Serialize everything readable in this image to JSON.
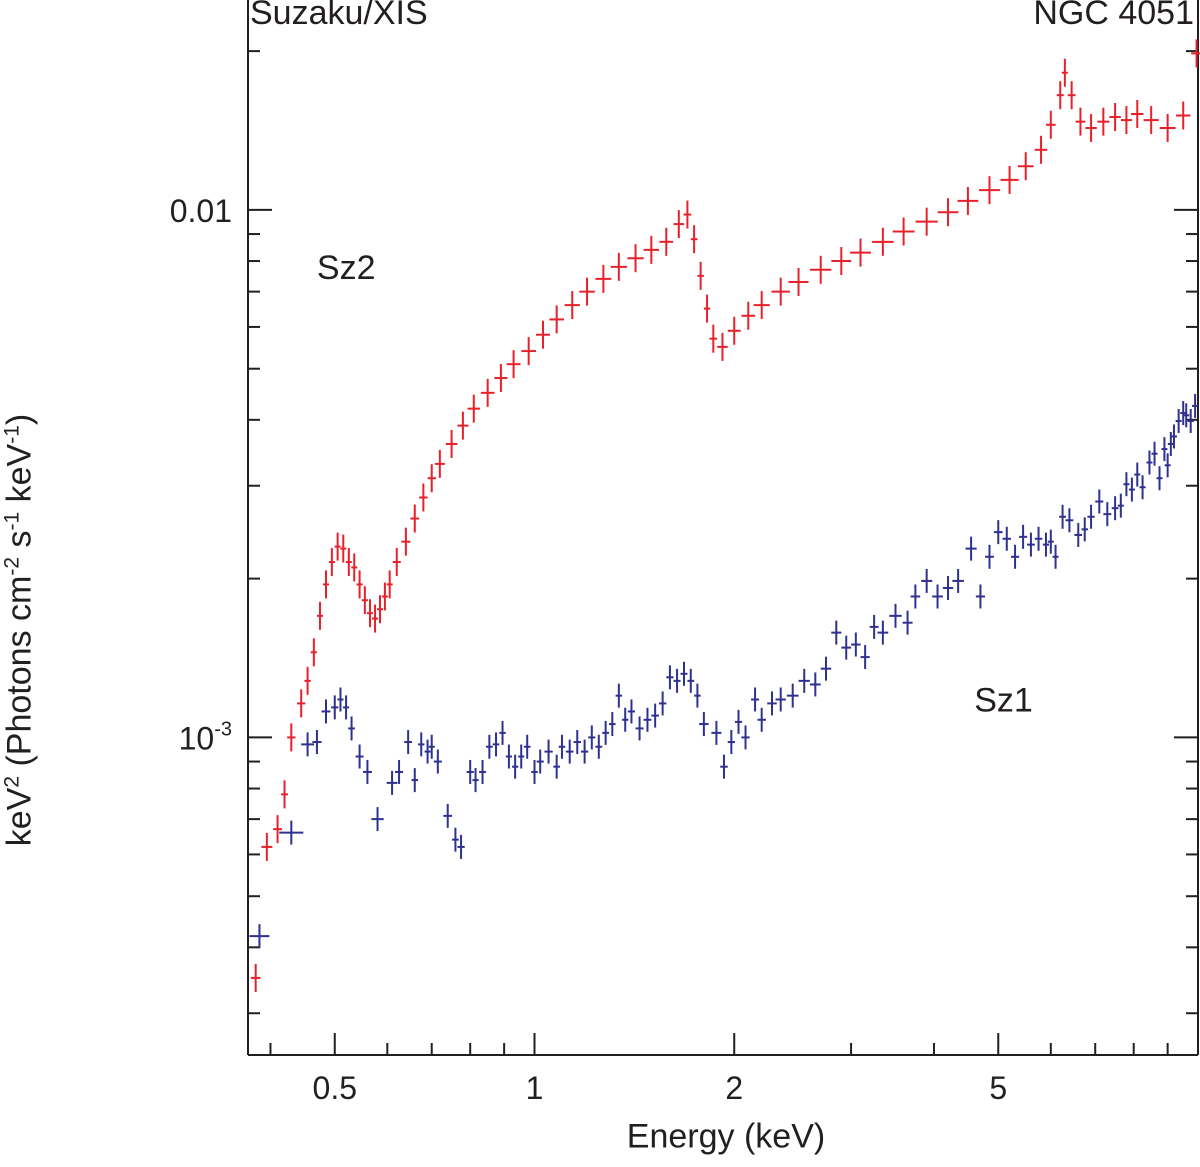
{
  "chart_data": {
    "type": "scatter",
    "title_left": "Suzaku/XIS",
    "title_right": "NGC 4051",
    "xlabel": "Energy (keV)",
    "ylabel": {
      "base": "keV",
      "sup1": "2",
      "mid1": " (Photons cm",
      "sup2": "-2",
      "mid2": " s",
      "sup3": "-1",
      "mid3": " keV",
      "sup4": "-1",
      "end": ")"
    },
    "xscale": "log",
    "yscale": "log",
    "xlim": [
      0.37,
      10.0
    ],
    "ylim": [
      0.00025,
      0.025
    ],
    "xticks": [
      {
        "value": 0.5,
        "label": "0.5"
      },
      {
        "value": 1,
        "label": "1"
      },
      {
        "value": 2,
        "label": "2"
      },
      {
        "value": 5,
        "label": "5"
      }
    ],
    "yticks": [
      {
        "value": 0.01,
        "label": "0.01"
      },
      {
        "value": 0.001,
        "label": "10",
        "sup": "-3"
      }
    ],
    "grid": false,
    "series": [
      {
        "name": "Sz2",
        "color": "#e8202a",
        "label_at": {
          "x": 0.47,
          "y": 0.0074
        },
        "points": [
          [
            0.38,
            0.00035
          ],
          [
            0.395,
            0.00062
          ],
          [
            0.41,
            0.00067
          ],
          [
            0.42,
            0.00078
          ],
          [
            0.43,
            0.001
          ],
          [
            0.445,
            0.00116
          ],
          [
            0.455,
            0.00128
          ],
          [
            0.465,
            0.00145
          ],
          [
            0.475,
            0.0017
          ],
          [
            0.485,
            0.00195
          ],
          [
            0.495,
            0.00215
          ],
          [
            0.505,
            0.0023
          ],
          [
            0.515,
            0.00228
          ],
          [
            0.525,
            0.00215
          ],
          [
            0.535,
            0.0021
          ],
          [
            0.545,
            0.00195
          ],
          [
            0.555,
            0.00182
          ],
          [
            0.565,
            0.00172
          ],
          [
            0.575,
            0.00168
          ],
          [
            0.585,
            0.00175
          ],
          [
            0.595,
            0.00185
          ],
          [
            0.605,
            0.00195
          ],
          [
            0.62,
            0.00215
          ],
          [
            0.64,
            0.00235
          ],
          [
            0.66,
            0.0026
          ],
          [
            0.68,
            0.00285
          ],
          [
            0.7,
            0.0031
          ],
          [
            0.72,
            0.0033
          ],
          [
            0.75,
            0.0036
          ],
          [
            0.78,
            0.0039
          ],
          [
            0.81,
            0.0042
          ],
          [
            0.85,
            0.0045
          ],
          [
            0.89,
            0.0048
          ],
          [
            0.93,
            0.0051
          ],
          [
            0.98,
            0.0054
          ],
          [
            1.03,
            0.0058
          ],
          [
            1.08,
            0.0062
          ],
          [
            1.14,
            0.0066
          ],
          [
            1.2,
            0.007
          ],
          [
            1.27,
            0.0074
          ],
          [
            1.34,
            0.0078
          ],
          [
            1.42,
            0.0081
          ],
          [
            1.5,
            0.0084
          ],
          [
            1.58,
            0.0087
          ],
          [
            1.65,
            0.0094
          ],
          [
            1.7,
            0.0098
          ],
          [
            1.74,
            0.0088
          ],
          [
            1.78,
            0.0075
          ],
          [
            1.82,
            0.0065
          ],
          [
            1.86,
            0.0057
          ],
          [
            1.92,
            0.0055
          ],
          [
            2.0,
            0.0059
          ],
          [
            2.1,
            0.0063
          ],
          [
            2.2,
            0.0066
          ],
          [
            2.35,
            0.007
          ],
          [
            2.5,
            0.0073
          ],
          [
            2.7,
            0.0077
          ],
          [
            2.9,
            0.008
          ],
          [
            3.1,
            0.0083
          ],
          [
            3.35,
            0.0087
          ],
          [
            3.6,
            0.0091
          ],
          [
            3.9,
            0.0095
          ],
          [
            4.2,
            0.0099
          ],
          [
            4.5,
            0.0104
          ],
          [
            4.85,
            0.0109
          ],
          [
            5.2,
            0.0114
          ],
          [
            5.5,
            0.0121
          ],
          [
            5.8,
            0.013
          ],
          [
            6.0,
            0.0145
          ],
          [
            6.2,
            0.0165
          ],
          [
            6.3,
            0.0182
          ],
          [
            6.45,
            0.0165
          ],
          [
            6.65,
            0.0147
          ],
          [
            6.9,
            0.0143
          ],
          [
            7.2,
            0.0147
          ],
          [
            7.5,
            0.015
          ],
          [
            7.8,
            0.0148
          ],
          [
            8.1,
            0.0152
          ],
          [
            8.5,
            0.0148
          ],
          [
            9.0,
            0.0143
          ],
          [
            9.5,
            0.0151
          ],
          [
            9.95,
            0.0198
          ]
        ]
      },
      {
        "name": "Sz1",
        "color": "#2e3190",
        "label_at": {
          "x": 4.6,
          "y": 0.00112
        },
        "points": [
          [
            0.385,
            0.00042
          ],
          [
            0.43,
            0.00066
          ],
          [
            0.455,
            0.00097
          ],
          [
            0.47,
            0.00098
          ],
          [
            0.485,
            0.00112
          ],
          [
            0.5,
            0.00114
          ],
          [
            0.51,
            0.00118
          ],
          [
            0.52,
            0.00114
          ],
          [
            0.53,
            0.00104
          ],
          [
            0.545,
            0.00092
          ],
          [
            0.56,
            0.00086
          ],
          [
            0.58,
            0.0007
          ],
          [
            0.61,
            0.00082
          ],
          [
            0.625,
            0.00086
          ],
          [
            0.645,
            0.00098
          ],
          [
            0.66,
            0.00083
          ],
          [
            0.675,
            0.00097
          ],
          [
            0.69,
            0.00094
          ],
          [
            0.7,
            0.00096
          ],
          [
            0.715,
            0.0009
          ],
          [
            0.74,
            0.00071
          ],
          [
            0.76,
            0.00064
          ],
          [
            0.775,
            0.00062
          ],
          [
            0.8,
            0.00086
          ],
          [
            0.815,
            0.00083
          ],
          [
            0.835,
            0.00086
          ],
          [
            0.855,
            0.00096
          ],
          [
            0.875,
            0.00097
          ],
          [
            0.895,
            0.00102
          ],
          [
            0.915,
            0.00092
          ],
          [
            0.935,
            0.00088
          ],
          [
            0.955,
            0.00092
          ],
          [
            0.975,
            0.00096
          ],
          [
            1.0,
            0.00086
          ],
          [
            1.02,
            0.0009
          ],
          [
            1.05,
            0.00094
          ],
          [
            1.08,
            0.00088
          ],
          [
            1.1,
            0.00096
          ],
          [
            1.13,
            0.00094
          ],
          [
            1.16,
            0.00098
          ],
          [
            1.19,
            0.00094
          ],
          [
            1.22,
            0.001
          ],
          [
            1.25,
            0.00096
          ],
          [
            1.28,
            0.00102
          ],
          [
            1.31,
            0.00106
          ],
          [
            1.34,
            0.0012
          ],
          [
            1.37,
            0.00108
          ],
          [
            1.4,
            0.00112
          ],
          [
            1.44,
            0.00104
          ],
          [
            1.48,
            0.00108
          ],
          [
            1.52,
            0.0011
          ],
          [
            1.56,
            0.00116
          ],
          [
            1.6,
            0.0013
          ],
          [
            1.64,
            0.00128
          ],
          [
            1.68,
            0.00132
          ],
          [
            1.72,
            0.00128
          ],
          [
            1.76,
            0.0012
          ],
          [
            1.8,
            0.00106
          ],
          [
            1.88,
            0.00102
          ],
          [
            1.93,
            0.00088
          ],
          [
            1.98,
            0.00098
          ],
          [
            2.03,
            0.00107
          ],
          [
            2.08,
            0.001
          ],
          [
            2.15,
            0.00118
          ],
          [
            2.2,
            0.00108
          ],
          [
            2.28,
            0.00116
          ],
          [
            2.35,
            0.00118
          ],
          [
            2.45,
            0.0012
          ],
          [
            2.55,
            0.00128
          ],
          [
            2.65,
            0.00126
          ],
          [
            2.75,
            0.00135
          ],
          [
            2.85,
            0.00158
          ],
          [
            2.95,
            0.00148
          ],
          [
            3.05,
            0.0015
          ],
          [
            3.15,
            0.00142
          ],
          [
            3.25,
            0.00162
          ],
          [
            3.35,
            0.00158
          ],
          [
            3.5,
            0.0017
          ],
          [
            3.65,
            0.00165
          ],
          [
            3.75,
            0.00185
          ],
          [
            3.9,
            0.00198
          ],
          [
            4.05,
            0.00185
          ],
          [
            4.2,
            0.00192
          ],
          [
            4.35,
            0.00198
          ],
          [
            4.55,
            0.00228
          ],
          [
            4.7,
            0.00185
          ],
          [
            4.85,
            0.0022
          ],
          [
            5.0,
            0.00245
          ],
          [
            5.15,
            0.00238
          ],
          [
            5.3,
            0.0022
          ],
          [
            5.45,
            0.0024
          ],
          [
            5.6,
            0.00232
          ],
          [
            5.75,
            0.00238
          ],
          [
            5.9,
            0.00232
          ],
          [
            6.0,
            0.00235
          ],
          [
            6.1,
            0.0022
          ],
          [
            6.25,
            0.00262
          ],
          [
            6.4,
            0.00258
          ],
          [
            6.6,
            0.00242
          ],
          [
            6.75,
            0.00248
          ],
          [
            6.9,
            0.00262
          ],
          [
            7.1,
            0.0028
          ],
          [
            7.3,
            0.00265
          ],
          [
            7.5,
            0.00272
          ],
          [
            7.65,
            0.00275
          ],
          [
            7.8,
            0.00302
          ],
          [
            7.95,
            0.00295
          ],
          [
            8.1,
            0.00315
          ],
          [
            8.25,
            0.00298
          ],
          [
            8.45,
            0.00332
          ],
          [
            8.6,
            0.00345
          ],
          [
            8.75,
            0.0031
          ],
          [
            8.9,
            0.00352
          ],
          [
            9.0,
            0.00328
          ],
          [
            9.1,
            0.0036
          ],
          [
            9.2,
            0.00372
          ],
          [
            9.35,
            0.00398
          ],
          [
            9.5,
            0.00412
          ],
          [
            9.6,
            0.00408
          ],
          [
            9.75,
            0.00398
          ],
          [
            9.9,
            0.00425
          ]
        ]
      }
    ]
  }
}
